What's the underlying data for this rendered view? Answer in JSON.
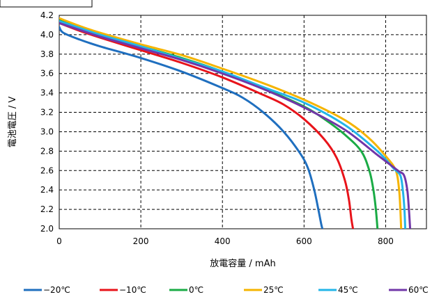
{
  "chart_data": {
    "type": "line",
    "title": "",
    "xlabel": "放電容量 / mAh",
    "ylabel": "電池電圧 / V",
    "xlim": [
      0,
      900
    ],
    "ylim": [
      2.0,
      4.2
    ],
    "xticks": [
      0,
      200,
      400,
      600,
      800
    ],
    "xtick_labels": [
      "0",
      "200",
      "400",
      "600",
      "800"
    ],
    "yticks": [
      2.0,
      2.2,
      2.4,
      2.6,
      2.8,
      3.0,
      3.2,
      3.4,
      3.6,
      3.8,
      4.0,
      4.2
    ],
    "ytick_labels": [
      "2.0",
      "2.2",
      "2.4",
      "2.6",
      "2.8",
      "3.0",
      "3.2",
      "3.4",
      "3.6",
      "3.8",
      "4.0",
      "4.2"
    ],
    "grid": true,
    "legend_position": "bottom",
    "series": [
      {
        "name": "−20℃",
        "color": "#1f6fbf",
        "points": [
          [
            0,
            4.08
          ],
          [
            10,
            4.02
          ],
          [
            50,
            3.95
          ],
          [
            100,
            3.88
          ],
          [
            200,
            3.76
          ],
          [
            300,
            3.62
          ],
          [
            400,
            3.45
          ],
          [
            450,
            3.35
          ],
          [
            500,
            3.2
          ],
          [
            550,
            3.0
          ],
          [
            590,
            2.78
          ],
          [
            610,
            2.62
          ],
          [
            625,
            2.4
          ],
          [
            635,
            2.2
          ],
          [
            642,
            2.05
          ],
          [
            645,
            2.0
          ]
        ]
      },
      {
        "name": "−10℃",
        "color": "#e8131a",
        "points": [
          [
            0,
            4.12
          ],
          [
            50,
            4.04
          ],
          [
            100,
            3.97
          ],
          [
            200,
            3.84
          ],
          [
            300,
            3.71
          ],
          [
            400,
            3.56
          ],
          [
            500,
            3.38
          ],
          [
            550,
            3.28
          ],
          [
            600,
            3.13
          ],
          [
            650,
            2.92
          ],
          [
            680,
            2.73
          ],
          [
            700,
            2.5
          ],
          [
            710,
            2.3
          ],
          [
            716,
            2.1
          ],
          [
            720,
            2.0
          ]
        ]
      },
      {
        "name": "0℃",
        "color": "#1aab45",
        "points": [
          [
            0,
            4.15
          ],
          [
            50,
            4.07
          ],
          [
            100,
            4.0
          ],
          [
            200,
            3.88
          ],
          [
            300,
            3.76
          ],
          [
            400,
            3.62
          ],
          [
            500,
            3.45
          ],
          [
            600,
            3.26
          ],
          [
            650,
            3.13
          ],
          [
            700,
            2.97
          ],
          [
            740,
            2.8
          ],
          [
            760,
            2.6
          ],
          [
            770,
            2.4
          ],
          [
            776,
            2.2
          ],
          [
            780,
            2.0
          ]
        ]
      },
      {
        "name": "25℃",
        "color": "#f5b400",
        "points": [
          [
            0,
            4.17
          ],
          [
            50,
            4.09
          ],
          [
            100,
            4.02
          ],
          [
            200,
            3.9
          ],
          [
            300,
            3.79
          ],
          [
            400,
            3.65
          ],
          [
            500,
            3.5
          ],
          [
            600,
            3.33
          ],
          [
            700,
            3.12
          ],
          [
            760,
            2.93
          ],
          [
            800,
            2.75
          ],
          [
            825,
            2.6
          ],
          [
            833,
            2.4
          ],
          [
            836,
            2.2
          ],
          [
            838,
            2.0
          ]
        ]
      },
      {
        "name": "45℃",
        "color": "#23b5e8",
        "points": [
          [
            0,
            4.14
          ],
          [
            50,
            4.07
          ],
          [
            100,
            4.0
          ],
          [
            200,
            3.88
          ],
          [
            300,
            3.75
          ],
          [
            400,
            3.62
          ],
          [
            500,
            3.46
          ],
          [
            600,
            3.3
          ],
          [
            700,
            3.07
          ],
          [
            780,
            2.8
          ],
          [
            820,
            2.62
          ],
          [
            836,
            2.55
          ],
          [
            842,
            2.4
          ],
          [
            846,
            2.2
          ],
          [
            848,
            2.0
          ]
        ]
      },
      {
        "name": "60℃",
        "color": "#7136a8",
        "points": [
          [
            0,
            4.12
          ],
          [
            50,
            4.05
          ],
          [
            100,
            3.98
          ],
          [
            200,
            3.86
          ],
          [
            300,
            3.74
          ],
          [
            400,
            3.6
          ],
          [
            500,
            3.44
          ],
          [
            600,
            3.25
          ],
          [
            700,
            3.02
          ],
          [
            780,
            2.76
          ],
          [
            830,
            2.6
          ],
          [
            845,
            2.55
          ],
          [
            853,
            2.4
          ],
          [
            857,
            2.2
          ],
          [
            860,
            2.0
          ]
        ]
      }
    ]
  }
}
